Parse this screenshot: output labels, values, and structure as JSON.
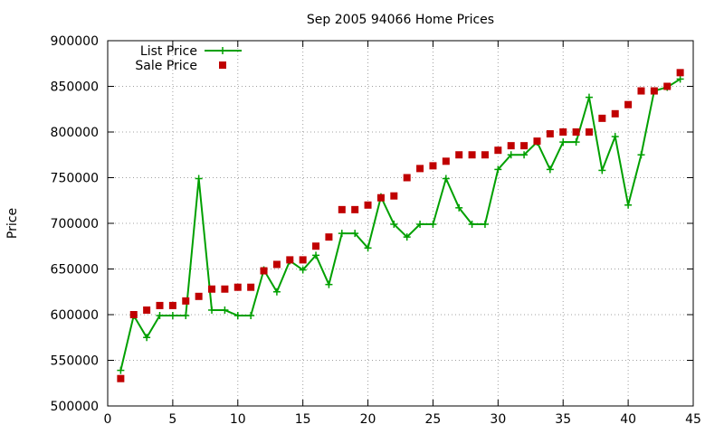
{
  "chart_data": {
    "type": "line",
    "title": "Sep 2005 94066 Home Prices",
    "xlabel": "",
    "ylabel": "Price",
    "xlim": [
      0,
      45
    ],
    "ylim": [
      500000,
      900000
    ],
    "xticks": [
      0,
      5,
      10,
      15,
      20,
      25,
      30,
      35,
      40,
      45
    ],
    "yticks": [
      500000,
      550000,
      600000,
      650000,
      700000,
      750000,
      800000,
      850000,
      900000
    ],
    "grid": true,
    "legend_position": "top-left",
    "series": [
      {
        "name": "List Price",
        "style": "line+points",
        "marker": "plus",
        "color": "#00a000",
        "x": [
          1,
          2,
          3,
          4,
          5,
          6,
          7,
          8,
          9,
          10,
          11,
          12,
          13,
          14,
          15,
          16,
          17,
          18,
          19,
          20,
          21,
          22,
          23,
          24,
          25,
          26,
          27,
          28,
          29,
          30,
          31,
          32,
          33,
          34,
          35,
          36,
          37,
          38,
          39,
          40,
          41,
          42,
          43,
          44
        ],
        "y": [
          539000,
          599000,
          575000,
          599000,
          599000,
          599000,
          749000,
          605000,
          605000,
          599000,
          599000,
          649000,
          625000,
          659000,
          649000,
          665000,
          633000,
          689000,
          689000,
          673000,
          729000,
          699000,
          685000,
          699000,
          699000,
          749000,
          717000,
          699000,
          699000,
          759000,
          775000,
          775000,
          789000,
          759000,
          789000,
          789000,
          838000,
          758000,
          795000,
          720000,
          775000,
          845000,
          849000,
          858000
        ]
      },
      {
        "name": "Sale Price",
        "style": "points",
        "marker": "square",
        "color": "#c00000",
        "x": [
          1,
          2,
          3,
          4,
          5,
          6,
          7,
          8,
          9,
          10,
          11,
          12,
          13,
          14,
          15,
          16,
          17,
          18,
          19,
          20,
          21,
          22,
          23,
          24,
          25,
          26,
          27,
          28,
          29,
          30,
          31,
          32,
          33,
          34,
          35,
          36,
          37,
          38,
          39,
          40,
          41,
          42,
          43,
          44
        ],
        "y": [
          530000,
          600000,
          605000,
          610000,
          610000,
          615000,
          620000,
          628000,
          628000,
          630000,
          630000,
          648000,
          655000,
          660000,
          660000,
          675000,
          685000,
          715000,
          715000,
          720000,
          728000,
          730000,
          750000,
          760000,
          763000,
          768000,
          775000,
          775000,
          775000,
          780000,
          785000,
          785000,
          790000,
          798000,
          800000,
          800000,
          800000,
          815000,
          820000,
          830000,
          845000,
          845000,
          850000,
          865000
        ]
      }
    ]
  }
}
